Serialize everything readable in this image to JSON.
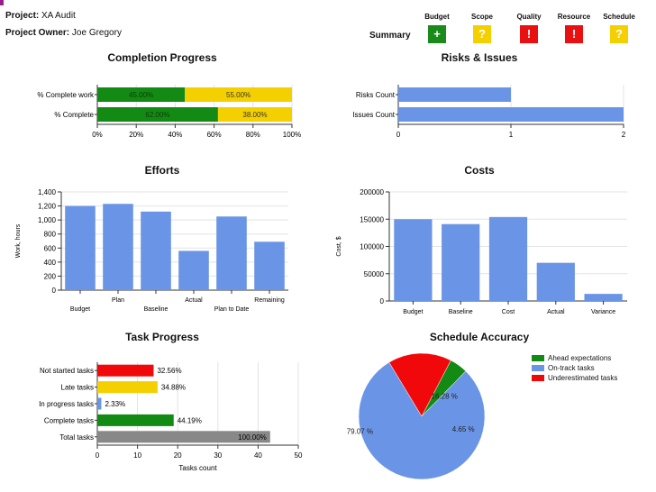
{
  "header": {
    "project_label": "Project:",
    "project_value": "XA Audit",
    "owner_label": "Project Owner:",
    "owner_value": "Joe Gregory",
    "summary_label": "Summary"
  },
  "status": [
    {
      "label": "Budget",
      "symbol": "+",
      "color": "#1a8a1a"
    },
    {
      "label": "Scope",
      "symbol": "?",
      "color": "#f5d000"
    },
    {
      "label": "Quality",
      "symbol": "!",
      "color": "#e81010"
    },
    {
      "label": "Resource",
      "symbol": "!",
      "color": "#e81010"
    },
    {
      "label": "Schedule",
      "symbol": "?",
      "color": "#f5d000"
    }
  ],
  "colors": {
    "green": "#138a13",
    "yellow": "#f5d000",
    "blue": "#6a95e6",
    "red": "#f0080a",
    "gray": "#888888"
  },
  "chart_data": [
    {
      "id": "completion",
      "type": "bar",
      "orientation": "horizontal",
      "stacked": true,
      "title": "Completion Progress",
      "categories": [
        "% Complete work",
        "% Complete"
      ],
      "series": [
        {
          "name": "Done",
          "values": [
            45,
            62
          ],
          "labels": [
            "45.00%",
            "62.00%"
          ]
        },
        {
          "name": "Remaining",
          "values": [
            55,
            38
          ],
          "labels": [
            "55.00%",
            "38.00%"
          ]
        }
      ],
      "xlim": [
        0,
        100
      ],
      "xticks": [
        "0%",
        "20%",
        "40%",
        "60%",
        "80%",
        "100%"
      ]
    },
    {
      "id": "risks",
      "type": "bar",
      "orientation": "horizontal",
      "title": "Risks & Issues",
      "categories": [
        "Risks Count",
        "Issues Count"
      ],
      "values": [
        1,
        2
      ],
      "xlim": [
        0,
        2
      ],
      "xticks": [
        "0",
        "1",
        "2"
      ]
    },
    {
      "id": "efforts",
      "type": "bar",
      "title": "Efforts",
      "ylabel": "Work, hours",
      "categories": [
        "Budget",
        "Plan",
        "Baseline",
        "Actual",
        "Plan to Date",
        "Remaining"
      ],
      "values": [
        1200,
        1230,
        1120,
        560,
        1050,
        690
      ],
      "ylim": [
        0,
        1400
      ],
      "yticks": [
        "0",
        "200",
        "400",
        "600",
        "800",
        "1,000",
        "1,200",
        "1,400"
      ]
    },
    {
      "id": "costs",
      "type": "bar",
      "title": "Costs",
      "ylabel": "Cost, $",
      "categories": [
        "Budget",
        "Baseline",
        "Cost",
        "Actual",
        "Variance"
      ],
      "values": [
        150000,
        141000,
        154000,
        70000,
        13000
      ],
      "ylim": [
        0,
        200000
      ],
      "yticks": [
        "0",
        "50000",
        "100000",
        "150000",
        "200000"
      ]
    },
    {
      "id": "tasks",
      "type": "bar",
      "orientation": "horizontal",
      "title": "Task Progress",
      "xlabel": "Tasks count",
      "categories": [
        "Not started tasks",
        "Late tasks",
        "In progress tasks",
        "Complete tasks",
        "Total tasks"
      ],
      "values": [
        14,
        15,
        1,
        19,
        43
      ],
      "labels": [
        "32.56%",
        "34.88%",
        "2.33%",
        "44.19%",
        "100.00%"
      ],
      "xlim": [
        0,
        50
      ],
      "xticks": [
        "0",
        "10",
        "20",
        "30",
        "40",
        "50"
      ]
    },
    {
      "id": "schedule",
      "type": "pie",
      "title": "Schedule Accuracy",
      "categories": [
        "Ahead expectations",
        "On-track tasks",
        "Underestimated tasks"
      ],
      "values": [
        4.65,
        79.07,
        16.28
      ],
      "labels": [
        "4.65 %",
        "79.07 %",
        "16.28 %"
      ]
    }
  ]
}
